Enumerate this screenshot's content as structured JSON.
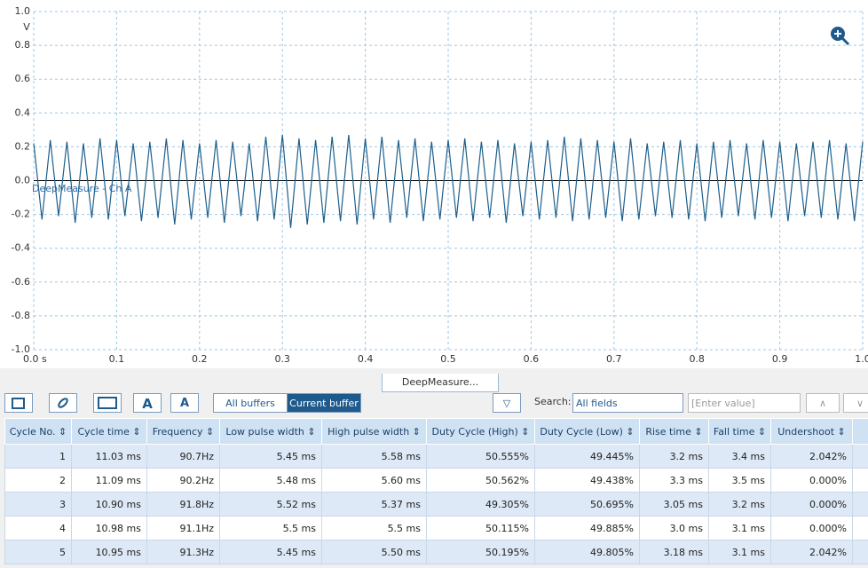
{
  "chart_data": {
    "type": "line",
    "y_unit": "V",
    "x": [
      0,
      0.01,
      0.02,
      0.03,
      0.04,
      0.05,
      0.06,
      0.07,
      0.08,
      0.09,
      0.1,
      0.11,
      0.12,
      0.13,
      0.14,
      0.15,
      0.16,
      0.17,
      0.18,
      0.19,
      0.2,
      0.21,
      0.22,
      0.23,
      0.24,
      0.25,
      0.26,
      0.27,
      0.28,
      0.29,
      0.3,
      0.31,
      0.32,
      0.33,
      0.34,
      0.35,
      0.36,
      0.37,
      0.38,
      0.39,
      0.4,
      0.41,
      0.42,
      0.43,
      0.44,
      0.45,
      0.46,
      0.47,
      0.48,
      0.49,
      0.5,
      0.51,
      0.52,
      0.53,
      0.54,
      0.55,
      0.56,
      0.57,
      0.58,
      0.59,
      0.6,
      0.61,
      0.62,
      0.63,
      0.64,
      0.65,
      0.66,
      0.67,
      0.68,
      0.69,
      0.7,
      0.71,
      0.72,
      0.73,
      0.74,
      0.75,
      0.76,
      0.77,
      0.78,
      0.79,
      0.8,
      0.81,
      0.82,
      0.83,
      0.84,
      0.85,
      0.86,
      0.87,
      0.88,
      0.89,
      0.9,
      0.91,
      0.92,
      0.93,
      0.94,
      0.95,
      0.96,
      0.97,
      0.98,
      0.99,
      1.0
    ],
    "series": [
      {
        "name": "DeepMeasure - Ch A",
        "color": "#1d5f8c",
        "values": [
          0.22,
          -0.23,
          0.24,
          -0.21,
          0.23,
          -0.25,
          0.22,
          -0.22,
          0.25,
          -0.23,
          0.24,
          -0.21,
          0.22,
          -0.24,
          0.23,
          -0.22,
          0.25,
          -0.26,
          0.24,
          -0.23,
          0.22,
          -0.22,
          0.24,
          -0.25,
          0.23,
          -0.21,
          0.22,
          -0.24,
          0.26,
          -0.23,
          0.27,
          -0.28,
          0.25,
          -0.26,
          0.24,
          -0.25,
          0.26,
          -0.24,
          0.27,
          -0.26,
          0.25,
          -0.23,
          0.26,
          -0.25,
          0.24,
          -0.22,
          0.25,
          -0.24,
          0.23,
          -0.23,
          0.24,
          -0.22,
          0.25,
          -0.24,
          0.23,
          -0.22,
          0.24,
          -0.25,
          0.22,
          -0.21,
          0.23,
          -0.23,
          0.24,
          -0.22,
          0.26,
          -0.24,
          0.25,
          -0.23,
          0.24,
          -0.22,
          0.23,
          -0.24,
          0.25,
          -0.23,
          0.22,
          -0.21,
          0.23,
          -0.22,
          0.24,
          -0.23,
          0.22,
          -0.24,
          0.23,
          -0.22,
          0.24,
          -0.21,
          0.22,
          -0.23,
          0.24,
          -0.22,
          0.23,
          -0.24,
          0.22,
          -0.21,
          0.23,
          -0.22,
          0.24,
          -0.23,
          0.22,
          -0.24,
          0.23
        ]
      }
    ],
    "xlim": [
      0,
      1
    ],
    "ylim": [
      -1,
      1
    ],
    "xticks": [
      {
        "value": 0,
        "label": "0.0 s"
      },
      0.1,
      0.2,
      0.3,
      0.4,
      0.5,
      0.6,
      0.7,
      0.8,
      0.9,
      {
        "value": 1,
        "label": "1.0"
      }
    ],
    "yticks": [
      {
        "value": 1,
        "label": "1.0"
      },
      0.8,
      0.6,
      0.4,
      0.2,
      {
        "value": 0,
        "label": "0.0"
      },
      -0.2,
      -0.4,
      -0.6,
      -0.8,
      {
        "value": -1,
        "label": "-1.0"
      }
    ],
    "grid": true
  },
  "tab": {
    "title": "DeepMeasure..."
  },
  "toolbar": {
    "buffers": [
      "All buffers",
      "Current buffer"
    ],
    "search_label": "Search:",
    "search_field": "All fields",
    "search_placeholder": "[Enter value]"
  },
  "table": {
    "columns": [
      "Cycle No.",
      "Cycle time",
      "Frequency",
      "Low pulse width",
      "High pulse width",
      "Duty Cycle (High)",
      "Duty Cycle (Low)",
      "Rise time",
      "Fall time",
      "Undershoot"
    ],
    "rows": [
      [
        "1",
        "11.03 ms",
        "90.7Hz",
        "5.45 ms",
        "5.58 ms",
        "50.555%",
        "49.445%",
        "3.2 ms",
        "3.4 ms",
        "2.042%"
      ],
      [
        "2",
        "11.09 ms",
        "90.2Hz",
        "5.48 ms",
        "5.60 ms",
        "50.562%",
        "49.438%",
        "3.3 ms",
        "3.5 ms",
        "0.000%"
      ],
      [
        "3",
        "10.90 ms",
        "91.8Hz",
        "5.52 ms",
        "5.37 ms",
        "49.305%",
        "50.695%",
        "3.05 ms",
        "3.2 ms",
        "0.000%"
      ],
      [
        "4",
        "10.98 ms",
        "91.1Hz",
        "5.5 ms",
        "5.5 ms",
        "50.115%",
        "49.885%",
        "3.0 ms",
        "3.1 ms",
        "0.000%"
      ],
      [
        "5",
        "10.95 ms",
        "91.3Hz",
        "5.45 ms",
        "5.50 ms",
        "50.195%",
        "49.805%",
        "3.18 ms",
        "3.1 ms",
        "2.042%"
      ]
    ]
  }
}
